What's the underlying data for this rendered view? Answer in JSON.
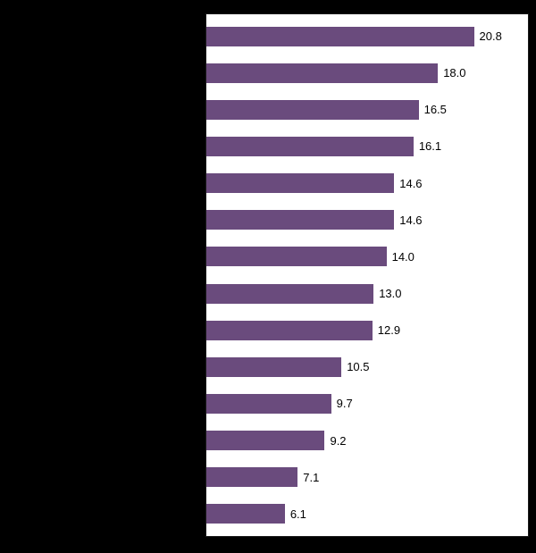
{
  "page": {
    "background_color": "#000000"
  },
  "chart_data": {
    "type": "bar",
    "orientation": "horizontal",
    "title": "",
    "xlabel": "",
    "ylabel": "",
    "xlim": [
      0,
      25
    ],
    "grid": false,
    "legend": false,
    "data_labels": true,
    "plot_background": "#ffffff",
    "plot_border_color": "#1a1a1a",
    "bar_color": "#6a4b7d",
    "label_color": "#000000",
    "categories_visible": false,
    "categories": [
      "",
      "",
      "",
      "",
      "",
      "",
      "",
      "",
      "",
      "",
      "",
      "",
      "",
      ""
    ],
    "values": [
      20.8,
      18.0,
      16.5,
      16.1,
      14.6,
      14.6,
      14.0,
      13.0,
      12.9,
      10.5,
      9.7,
      9.2,
      7.1,
      6.1
    ],
    "value_labels": [
      "20.8",
      "18.0",
      "16.5",
      "16.1",
      "14.6",
      "14.6",
      "14.0",
      "13.0",
      "12.9",
      "10.5",
      "9.7",
      "9.2",
      "7.1",
      "6.1"
    ]
  }
}
